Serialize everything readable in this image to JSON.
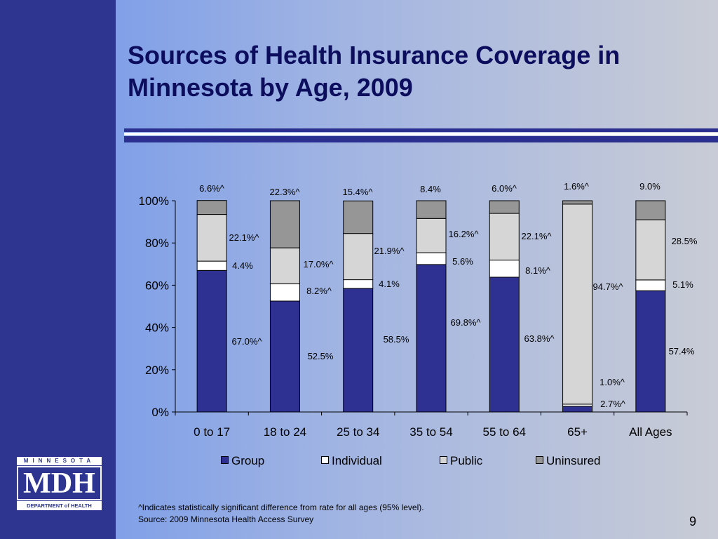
{
  "slide": {
    "title": "Sources of Health Insurance Coverage in Minnesota by Age, 2009",
    "footnote": "^Indicates statistically significant difference from rate for all ages (95% level).",
    "source": "Source: 2009 Minnesota Health Access Survey",
    "page_number": "9"
  },
  "logo": {
    "top_text": "MINNESOTA",
    "main_text": "MDH",
    "bottom_text": "DEPARTMENT of HEALTH"
  },
  "chart_data": {
    "type": "bar",
    "stacked": true,
    "title": "",
    "xlabel": "",
    "ylabel": "",
    "ylim": [
      0,
      100
    ],
    "yticks": [
      "0%",
      "20%",
      "40%",
      "60%",
      "80%",
      "100%"
    ],
    "legend_position": "bottom",
    "categories": [
      "0 to 17",
      "18 to 24",
      "25 to 34",
      "35 to 54",
      "55 to 64",
      "65+",
      "All Ages"
    ],
    "series": [
      {
        "name": "Group",
        "color": "#2e3192",
        "values": [
          67.0,
          52.5,
          58.5,
          69.8,
          63.8,
          2.7,
          57.4
        ],
        "labels": [
          "67.0%^",
          "52.5%",
          "58.5%",
          "69.8%^",
          "63.8%^",
          "2.7%^",
          "57.4%"
        ]
      },
      {
        "name": "Individual",
        "color": "#ffffff",
        "values": [
          4.4,
          8.2,
          4.1,
          5.6,
          8.1,
          1.0,
          5.1
        ],
        "labels": [
          "4.4%",
          "8.2%^",
          "4.1%",
          "5.6%",
          "8.1%^",
          "1.0%^",
          "5.1%"
        ]
      },
      {
        "name": "Public",
        "color": "#d6d6d6",
        "values": [
          22.1,
          17.0,
          21.9,
          16.2,
          22.1,
          94.7,
          28.5
        ],
        "labels": [
          "22.1%^",
          "17.0%^",
          "21.9%^",
          "16.2%^",
          "22.1%^",
          "94.7%^",
          "28.5%"
        ]
      },
      {
        "name": "Uninsured",
        "color": "#969696",
        "values": [
          6.6,
          22.3,
          15.4,
          8.4,
          6.0,
          1.6,
          9.0
        ],
        "labels": [
          "6.6%^",
          "22.3%^",
          "15.4%^",
          "8.4%",
          "6.0%^",
          "1.6%^",
          "9.0%"
        ]
      }
    ]
  }
}
